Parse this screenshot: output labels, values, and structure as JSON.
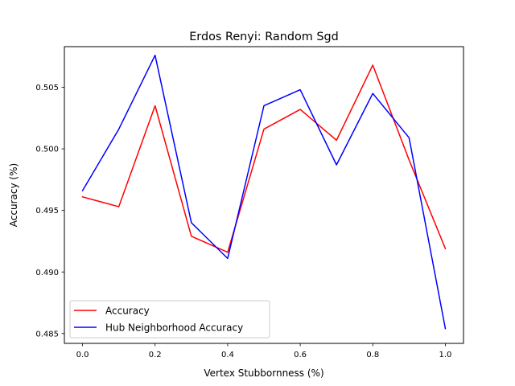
{
  "chart_data": {
    "type": "line",
    "title": "Erdos Renyi: Random Sgd",
    "xlabel": "Vertex Stubbornness (%)",
    "ylabel": "Accuracy (%)",
    "xlim": [
      -0.05,
      1.05
    ],
    "ylim": [
      0.4842,
      0.5083
    ],
    "xticks": [
      0.0,
      0.2,
      0.4,
      0.6,
      0.8,
      1.0
    ],
    "xtick_labels": [
      "0.0",
      "0.2",
      "0.4",
      "0.6",
      "0.8",
      "1.0"
    ],
    "yticks": [
      0.485,
      0.49,
      0.495,
      0.5,
      0.505
    ],
    "ytick_labels": [
      "0.485",
      "0.490",
      "0.495",
      "0.500",
      "0.505"
    ],
    "grid": false,
    "legend_position": "lower-left",
    "x": [
      0.0,
      0.1,
      0.2,
      0.3,
      0.4,
      0.5,
      0.6,
      0.7,
      0.8,
      0.9,
      1.0
    ],
    "series": [
      {
        "name": "Accuracy",
        "color": "#ff0000",
        "values": [
          0.4961,
          0.4953,
          0.5035,
          0.4929,
          0.4916,
          0.5016,
          0.5032,
          0.5007,
          0.5068,
          0.4991,
          0.4919
        ]
      },
      {
        "name": "Hub Neighborhood Accuracy",
        "color": "#0000ff",
        "values": [
          0.4966,
          0.5016,
          0.5076,
          0.494,
          0.4911,
          0.5035,
          0.5048,
          0.4987,
          0.5045,
          0.5009,
          0.4854
        ]
      }
    ]
  }
}
